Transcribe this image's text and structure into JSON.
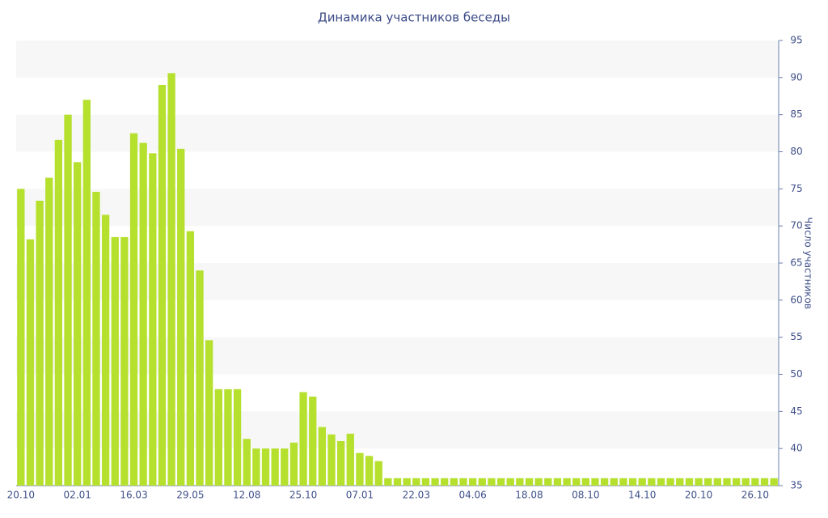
{
  "chart_data": {
    "type": "bar",
    "title": "Динамика участников беседы",
    "y_axis_label": "Число участников",
    "categories": [
      "20.10",
      null,
      null,
      null,
      null,
      null,
      "02.01",
      null,
      null,
      null,
      null,
      null,
      "16.03",
      null,
      null,
      null,
      null,
      null,
      "29.05",
      null,
      null,
      null,
      null,
      null,
      "12.08",
      null,
      null,
      null,
      null,
      null,
      "25.10",
      null,
      null,
      null,
      null,
      null,
      "07.01",
      null,
      null,
      null,
      null,
      null,
      "22.03",
      null,
      null,
      null,
      null,
      null,
      "04.06",
      null,
      null,
      null,
      null,
      null,
      "18.08",
      null,
      null,
      null,
      null,
      null,
      "08.10",
      null,
      null,
      null,
      null,
      null,
      "14.10",
      null,
      null,
      null,
      null,
      null,
      "20.10",
      null,
      null,
      null,
      null,
      null,
      "26.10",
      null,
      null
    ],
    "values": [
      75,
      68.2,
      73.4,
      76.5,
      81.6,
      85,
      78.6,
      87,
      74.6,
      71.5,
      68.5,
      68.5,
      82.5,
      81.2,
      79.8,
      89,
      90.6,
      80.4,
      69.3,
      64,
      54.6,
      48,
      48,
      48,
      41.3,
      40,
      40,
      40,
      40,
      40.8,
      47.6,
      47,
      42.9,
      41.9,
      41,
      42,
      39.4,
      39,
      38.3,
      36,
      36,
      36,
      36,
      36,
      36,
      36,
      36,
      36,
      36,
      36,
      36,
      36,
      36,
      36,
      36,
      36,
      36,
      36,
      36,
      36,
      36,
      36,
      36,
      36,
      36,
      36,
      36,
      36,
      36,
      36,
      36,
      36,
      36,
      36,
      36,
      36,
      36,
      36,
      36,
      36,
      36
    ],
    "color": "#b5e02e",
    "ylim": [
      35,
      95
    ],
    "yticks": [
      35,
      40,
      45,
      50,
      55,
      60,
      65,
      70,
      75,
      80,
      85,
      90,
      95
    ],
    "grid": "bands",
    "axis_side": "right"
  }
}
